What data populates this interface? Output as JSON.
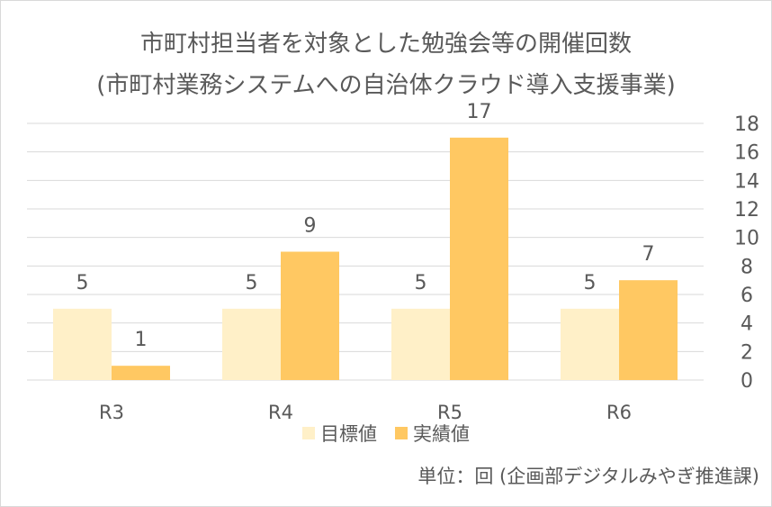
{
  "chart_data": {
    "type": "bar",
    "title_line1": "市町村担当者を対象とした勉強会等の開催回数",
    "title_line2": "(市町村業務システムへの自治体クラウド導入支援事業)",
    "categories": [
      "R3",
      "R4",
      "R5",
      "R6"
    ],
    "series": [
      {
        "name": "目標値",
        "values": [
          5,
          5,
          5,
          5
        ],
        "color": "#fff0c8"
      },
      {
        "name": "実績値",
        "values": [
          1,
          9,
          17,
          7
        ],
        "color": "#ffc862"
      }
    ],
    "ylim": [
      0,
      18
    ],
    "yticks": [
      0,
      2,
      4,
      6,
      8,
      10,
      12,
      14,
      16,
      18
    ],
    "grid": true,
    "yaxis_side": "right",
    "legend_position": "bottom",
    "colors": {
      "text": "#595959",
      "grid": "#d9d9d9"
    }
  },
  "footnote": "単位：回 (企画部デジタルみやぎ推進課)"
}
